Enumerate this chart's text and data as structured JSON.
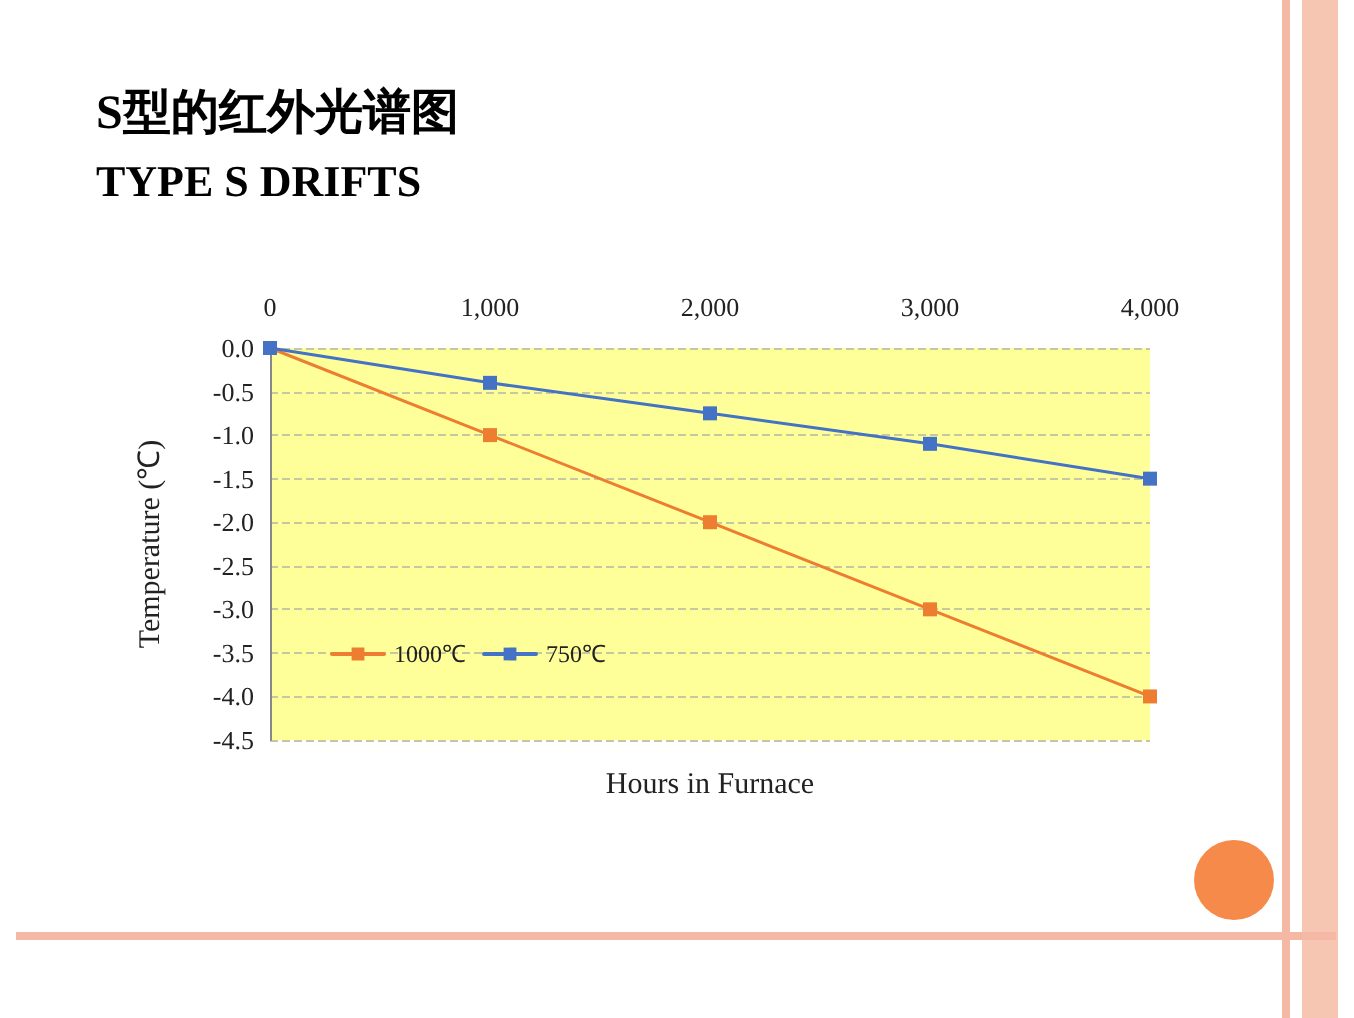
{
  "chart_data": {
    "type": "line",
    "title": "S型的红外光谱图",
    "subtitle": "TYPE S DRIFTS",
    "xlabel": "Hours in Furnace",
    "ylabel": "Temperature (℃)",
    "x": [
      0,
      1000,
      2000,
      3000,
      4000
    ],
    "series": [
      {
        "name": "1000℃",
        "color": "#ed7d31",
        "values": [
          0,
          -1.0,
          -2.0,
          -3.0,
          -4.0
        ]
      },
      {
        "name": "750℃",
        "color": "#4472c4",
        "values": [
          0,
          -0.4,
          -0.75,
          -1.1,
          -1.5
        ]
      }
    ],
    "xlim": [
      0,
      4000
    ],
    "xticks": [
      {
        "value": 0,
        "label": "0"
      },
      {
        "value": 1000,
        "label": "1,000"
      },
      {
        "value": 2000,
        "label": "2,000"
      },
      {
        "value": 3000,
        "label": "3,000"
      },
      {
        "value": 4000,
        "label": "4,000"
      }
    ],
    "ylim": [
      -4.5,
      0
    ],
    "yticks": [
      {
        "value": -4.5,
        "label": "-4.5"
      },
      {
        "value": -4,
        "label": "-4.0"
      },
      {
        "value": -3.5,
        "label": "-3.5"
      },
      {
        "value": -3,
        "label": "-3.0"
      },
      {
        "value": -2.5,
        "label": "-2.5"
      },
      {
        "value": -2,
        "label": "-2.0"
      },
      {
        "value": -1.5,
        "label": "-1.5"
      },
      {
        "value": -1,
        "label": "-1.0"
      },
      {
        "value": -0.5,
        "label": "-0.5"
      },
      {
        "value": 0,
        "label": "0.0"
      }
    ],
    "grid": "y",
    "legend": "bottom left",
    "marker": "square",
    "line_style": "solid"
  }
}
